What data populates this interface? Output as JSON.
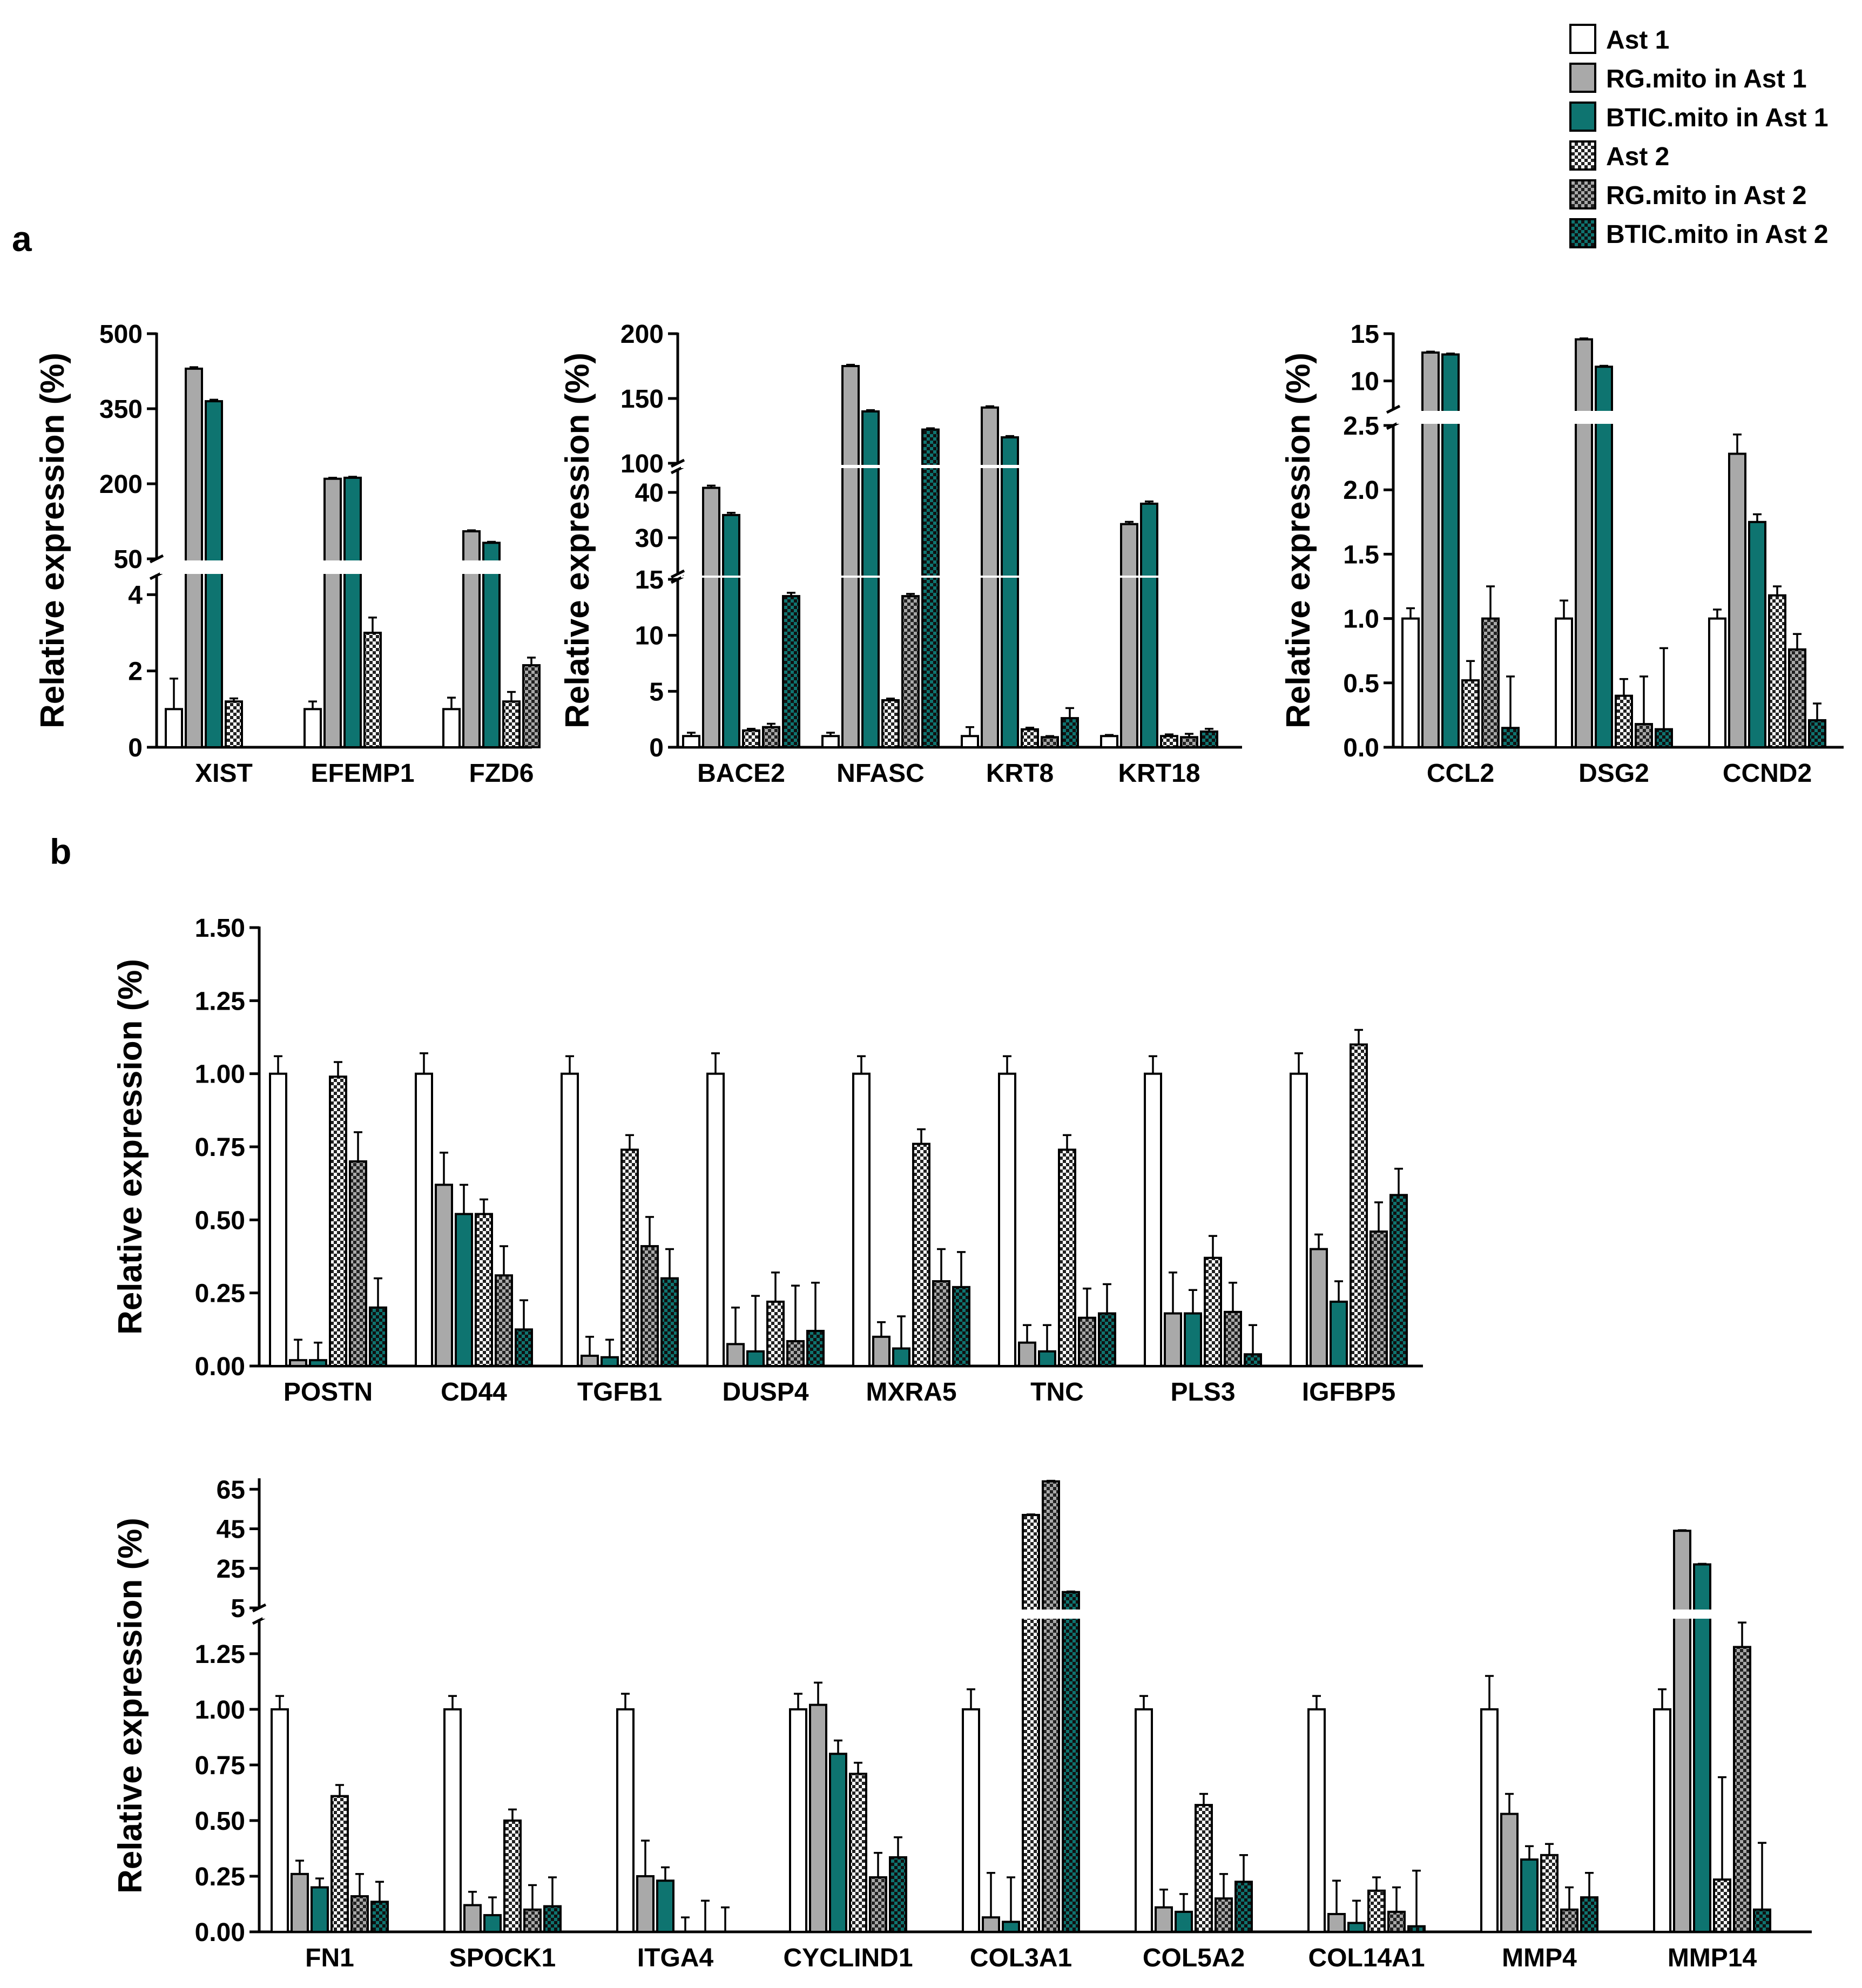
{
  "legend": [
    {
      "label": "Ast 1",
      "fill": "white"
    },
    {
      "label": "RG.mito in Ast 1",
      "fill": "gray"
    },
    {
      "label": "BTIC.mito in Ast 1",
      "fill": "teal"
    },
    {
      "label": "Ast 2",
      "fill": "check-white"
    },
    {
      "label": "RG.mito in Ast 2",
      "fill": "check-gray"
    },
    {
      "label": "BTIC.mito in Ast 2",
      "fill": "check-teal"
    }
  ],
  "colors": {
    "teal": "#0e7470",
    "gray": "#a9a9a9",
    "white": "#ffffff",
    "check_dark": "#222222"
  },
  "panel_labels": [
    "a",
    "b"
  ],
  "chart_data": [
    {
      "id": "a1",
      "type": "bar",
      "ylabel": "Relative expression (%)",
      "categories": [
        "XIST",
        "EFEMP1",
        "FZD6"
      ],
      "segments": [
        {
          "range": [
            0,
            4.5
          ],
          "ticks": [
            0,
            2,
            4
          ]
        },
        {
          "range": [
            50,
            500
          ],
          "ticks": [
            50,
            200,
            350,
            500
          ]
        }
      ],
      "series": [
        {
          "name": "Ast 1",
          "values": [
            1.0,
            1.0,
            1.0
          ],
          "errors": [
            0.8,
            0.2,
            0.3
          ]
        },
        {
          "name": "RG.mito in Ast 1",
          "values": [
            430,
            210,
            105
          ],
          "errors": [
            3,
            2,
            2
          ]
        },
        {
          "name": "BTIC.mito in Ast 1",
          "values": [
            365,
            212,
            82
          ],
          "errors": [
            3,
            2,
            2
          ]
        },
        {
          "name": "Ast 2",
          "values": [
            1.2,
            3.0,
            1.2
          ],
          "errors": [
            0.08,
            0.4,
            0.25
          ]
        },
        {
          "name": "RG.mito in Ast 2",
          "values": [
            null,
            null,
            2.15
          ],
          "errors": [
            null,
            null,
            0.2
          ]
        },
        {
          "name": "BTIC.mito in Ast 2",
          "values": [
            null,
            null,
            null
          ],
          "errors": [
            null,
            null,
            null
          ]
        }
      ]
    },
    {
      "id": "a2",
      "type": "bar",
      "ylabel": "Relative expression (%)",
      "categories": [
        "BACE2",
        "NFASC",
        "KRT8",
        "KRT18"
      ],
      "segments": [
        {
          "range": [
            0,
            15
          ],
          "ticks": [
            0,
            5,
            10,
            15
          ]
        },
        {
          "range": [
            22,
            45
          ],
          "ticks": [
            30,
            40
          ]
        },
        {
          "range": [
            100,
            200
          ],
          "ticks": [
            100,
            150,
            200
          ]
        }
      ],
      "series": [
        {
          "name": "Ast 1",
          "values": [
            1.0,
            1.0,
            1.0,
            1.0
          ],
          "errors": [
            0.3,
            0.3,
            0.8,
            0.1
          ]
        },
        {
          "name": "RG.mito in Ast 1",
          "values": [
            41,
            175,
            143,
            33
          ],
          "errors": [
            0.5,
            1,
            1,
            0.5
          ]
        },
        {
          "name": "BTIC.mito in Ast 1",
          "values": [
            35,
            140,
            120,
            37.5
          ],
          "errors": [
            0.5,
            1,
            1,
            0.5
          ]
        },
        {
          "name": "Ast 2",
          "values": [
            1.5,
            4.2,
            1.6,
            1.0
          ],
          "errors": [
            0.15,
            0.15,
            0.15,
            0.15
          ]
        },
        {
          "name": "RG.mito in Ast 2",
          "values": [
            1.8,
            13.5,
            0.9,
            0.9
          ],
          "errors": [
            0.3,
            0.2,
            0.1,
            0.3
          ]
        },
        {
          "name": "BTIC.mito in Ast 2",
          "values": [
            13.5,
            126,
            2.6,
            1.4
          ],
          "errors": [
            0.3,
            1,
            0.9,
            0.25
          ]
        }
      ]
    },
    {
      "id": "a3",
      "type": "bar",
      "ylabel": "Relative expression (%)",
      "categories": [
        "CCL2",
        "DSG2",
        "CCND2"
      ],
      "segments": [
        {
          "range": [
            0,
            2.5
          ],
          "ticks": [
            0.0,
            0.5,
            1.0,
            1.5,
            2.0,
            2.5
          ]
        },
        {
          "range": [
            7,
            15
          ],
          "ticks": [
            10,
            15
          ]
        }
      ],
      "series": [
        {
          "name": "Ast 1",
          "values": [
            1.0,
            1.0,
            1.0
          ],
          "errors": [
            0.08,
            0.14,
            0.07
          ]
        },
        {
          "name": "RG.mito in Ast 1",
          "values": [
            13.0,
            14.4,
            2.28
          ],
          "errors": [
            0.1,
            0.1,
            0.15
          ]
        },
        {
          "name": "BTIC.mito in Ast 1",
          "values": [
            12.8,
            11.5,
            1.75
          ],
          "errors": [
            0.1,
            0.1,
            0.06
          ]
        },
        {
          "name": "Ast 2",
          "values": [
            0.52,
            0.4,
            1.18
          ],
          "errors": [
            0.15,
            0.13,
            0.07
          ]
        },
        {
          "name": "RG.mito in Ast 2",
          "values": [
            1.0,
            0.18,
            0.76
          ],
          "errors": [
            0.25,
            0.37,
            0.12
          ]
        },
        {
          "name": "BTIC.mito in Ast 2",
          "values": [
            0.15,
            0.14,
            0.21
          ],
          "errors": [
            0.4,
            0.63,
            0.13
          ]
        }
      ]
    },
    {
      "id": "b1",
      "type": "bar",
      "ylabel": "Relative expression (%)",
      "categories": [
        "POSTN",
        "CD44",
        "TGFB1",
        "DUSP4",
        "MXRA5",
        "TNC",
        "PLS3",
        "IGFBP5"
      ],
      "segments": [
        {
          "range": [
            0,
            1.5
          ],
          "ticks": [
            0.0,
            0.25,
            0.5,
            0.75,
            1.0,
            1.25,
            1.5
          ]
        }
      ],
      "series": [
        {
          "name": "Ast 1",
          "values": [
            1.0,
            1.0,
            1.0,
            1.0,
            1.0,
            1.0,
            1.0,
            1.0
          ],
          "errors": [
            0.06,
            0.07,
            0.06,
            0.07,
            0.06,
            0.06,
            0.06,
            0.07
          ]
        },
        {
          "name": "RG.mito in Ast 1",
          "values": [
            0.02,
            0.62,
            0.035,
            0.075,
            0.1,
            0.08,
            0.18,
            0.4
          ],
          "errors": [
            0.07,
            0.11,
            0.065,
            0.125,
            0.05,
            0.06,
            0.14,
            0.05
          ]
        },
        {
          "name": "BTIC.mito in Ast 1",
          "values": [
            0.02,
            0.52,
            0.03,
            0.05,
            0.06,
            0.05,
            0.18,
            0.22
          ],
          "errors": [
            0.06,
            0.1,
            0.06,
            0.19,
            0.11,
            0.09,
            0.08,
            0.07
          ]
        },
        {
          "name": "Ast 2",
          "values": [
            0.99,
            0.52,
            0.74,
            0.22,
            0.76,
            0.74,
            0.37,
            1.1
          ],
          "errors": [
            0.05,
            0.05,
            0.05,
            0.1,
            0.05,
            0.05,
            0.075,
            0.05
          ]
        },
        {
          "name": "RG.mito in Ast 2",
          "values": [
            0.7,
            0.31,
            0.41,
            0.085,
            0.29,
            0.165,
            0.185,
            0.46
          ],
          "errors": [
            0.1,
            0.1,
            0.1,
            0.19,
            0.11,
            0.1,
            0.1,
            0.1
          ]
        },
        {
          "name": "BTIC.mito in Ast 2",
          "values": [
            0.2,
            0.125,
            0.3,
            0.12,
            0.27,
            0.18,
            0.04,
            0.585
          ],
          "errors": [
            0.1,
            0.1,
            0.1,
            0.165,
            0.12,
            0.1,
            0.1,
            0.09
          ]
        }
      ]
    },
    {
      "id": "b2",
      "type": "bar",
      "ylabel": "Relative expression (%)",
      "categories": [
        "FN1",
        "SPOCK1",
        "ITGA4",
        "CYCLIND1",
        "COL3A1",
        "COL5A2",
        "COL14A1",
        "MMP4",
        "MMP14"
      ],
      "segments": [
        {
          "range": [
            0,
            1.4
          ],
          "ticks": [
            0.0,
            0.25,
            0.5,
            0.75,
            1.0,
            1.25
          ]
        },
        {
          "range": [
            5,
            70
          ],
          "ticks": [
            5,
            25,
            45,
            65
          ]
        }
      ],
      "series": [
        {
          "name": "Ast 1",
          "values": [
            1.0,
            1.0,
            1.0,
            1.0,
            1.0,
            1.0,
            1.0,
            1.0,
            1.0
          ],
          "errors": [
            0.06,
            0.06,
            0.07,
            0.07,
            0.09,
            0.06,
            0.06,
            0.15,
            0.09
          ]
        },
        {
          "name": "RG.mito in Ast 1",
          "values": [
            0.26,
            0.12,
            0.25,
            1.02,
            0.065,
            0.11,
            0.08,
            0.53,
            44
          ],
          "errors": [
            0.06,
            0.06,
            0.16,
            0.1,
            0.2,
            0.08,
            0.15,
            0.09,
            0.3
          ]
        },
        {
          "name": "BTIC.mito in Ast 1",
          "values": [
            0.2,
            0.075,
            0.23,
            0.8,
            0.045,
            0.09,
            0.04,
            0.325,
            27
          ],
          "errors": [
            0.04,
            0.08,
            0.06,
            0.06,
            0.2,
            0.08,
            0.1,
            0.06,
            0.3
          ]
        },
        {
          "name": "Ast 2",
          "values": [
            0.61,
            0.5,
            null,
            0.71,
            52,
            0.57,
            0.185,
            0.345,
            0.235
          ],
          "errors": [
            0.05,
            0.05,
            0.065,
            0.05,
            0.3,
            0.05,
            0.06,
            0.05,
            0.46
          ]
        },
        {
          "name": "RG.mito in Ast 2",
          "values": [
            0.16,
            0.1,
            null,
            0.245,
            69,
            0.15,
            0.09,
            0.1,
            1.28
          ],
          "errors": [
            0.1,
            0.11,
            0.14,
            0.11,
            0.3,
            0.11,
            0.11,
            0.1,
            0.11
          ]
        },
        {
          "name": "BTIC.mito in Ast 2",
          "values": [
            0.135,
            0.115,
            null,
            0.335,
            13,
            0.225,
            0.025,
            0.155,
            0.1
          ],
          "errors": [
            0.09,
            0.13,
            0.11,
            0.09,
            0.3,
            0.12,
            0.25,
            0.11,
            0.3
          ]
        }
      ]
    }
  ]
}
